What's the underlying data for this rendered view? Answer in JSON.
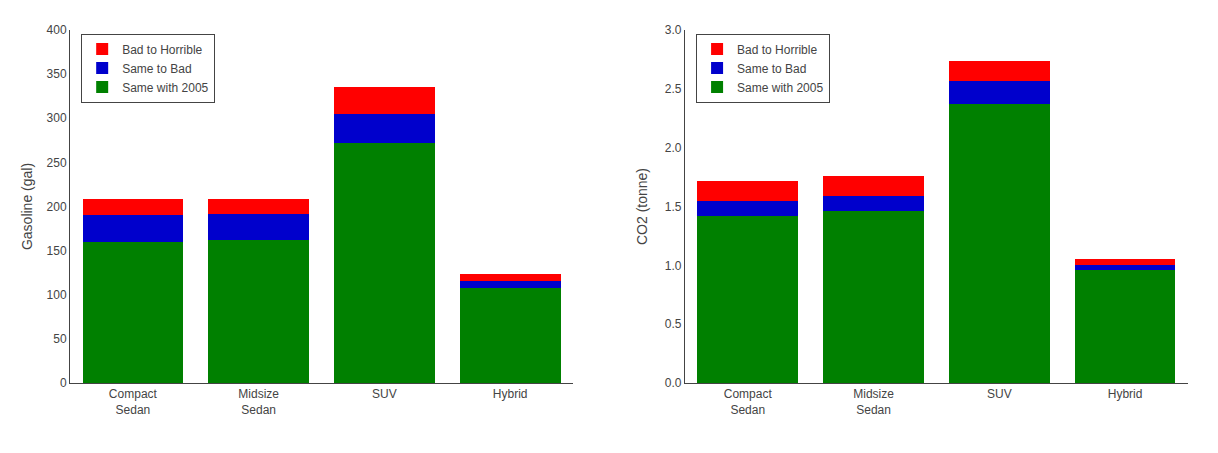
{
  "chart_data": [
    {
      "type": "bar",
      "stacked": true,
      "ylabel": "Gasoline (gal)",
      "categories": [
        "Compact\nSedan",
        "Midsize\nSedan",
        "SUV",
        "Hybrid"
      ],
      "series": [
        {
          "name": "Same with 2005",
          "color": "#008000",
          "values": [
            160,
            162,
            272,
            108
          ]
        },
        {
          "name": "Same to Bad",
          "color": "#0000CC",
          "values": [
            30,
            30,
            33,
            8
          ]
        },
        {
          "name": "Bad to Horrible",
          "color": "#FF0000",
          "values": [
            18,
            17,
            30,
            8
          ]
        }
      ],
      "ylim": [
        0,
        400
      ],
      "yticks": [
        0,
        50,
        100,
        150,
        200,
        250,
        300,
        350,
        400
      ],
      "grid": false,
      "legend": "upper left"
    },
    {
      "type": "bar",
      "stacked": true,
      "ylabel": "CO2 (tonne)",
      "categories": [
        "Compact\nSedan",
        "Midsize\nSedan",
        "SUV",
        "Hybrid"
      ],
      "series": [
        {
          "name": "Same with 2005",
          "color": "#008000",
          "values": [
            1.42,
            1.46,
            2.37,
            0.96
          ]
        },
        {
          "name": "Same to Bad",
          "color": "#0000CC",
          "values": [
            0.13,
            0.13,
            0.2,
            0.04
          ]
        },
        {
          "name": "Bad to Horrible",
          "color": "#FF0000",
          "values": [
            0.17,
            0.17,
            0.17,
            0.05
          ]
        }
      ],
      "ylim": [
        0,
        3
      ],
      "yticks": [
        {
          "value": 0,
          "label": "0.0"
        },
        0.5,
        {
          "value": 1.0,
          "label": "1.0"
        },
        1.5,
        {
          "value": 2.0,
          "label": "2.0"
        },
        2.5,
        {
          "value": 3.0,
          "label": "3.0"
        }
      ],
      "grid": false,
      "legend": "upper left"
    }
  ]
}
